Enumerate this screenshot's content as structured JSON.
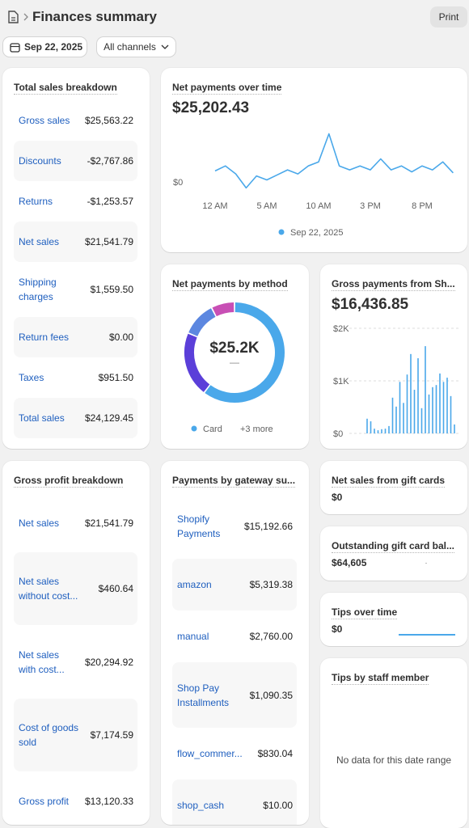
{
  "header": {
    "title": "Finances summary",
    "print_button": "Print"
  },
  "filters": {
    "date": "Sep 22, 2025",
    "channel": "All channels"
  },
  "total_sales_breakdown": {
    "title": "Total sales breakdown",
    "rows": [
      {
        "label": "Gross sales",
        "value": "$25,563.22"
      },
      {
        "label": "Discounts",
        "value": "-$2,767.86"
      },
      {
        "label": "Returns",
        "value": "-$1,253.57"
      },
      {
        "label": "Net sales",
        "value": "$21,541.79"
      },
      {
        "label": "Shipping\ncharges",
        "value": "$1,559.50"
      },
      {
        "label": "Return fees",
        "value": "$0.00"
      },
      {
        "label": "Taxes",
        "value": "$951.50"
      },
      {
        "label": "Total sales",
        "value": "$24,129.45"
      }
    ]
  },
  "net_payments_over_time": {
    "title": "Net payments over time",
    "total": "$25,202.43",
    "chart": {
      "type": "line",
      "x": [
        0,
        1,
        2,
        3,
        4,
        5,
        6,
        7,
        8,
        9,
        10,
        11,
        12,
        13,
        14,
        15,
        16,
        17,
        18,
        19,
        20,
        21,
        22,
        23
      ],
      "series": [
        {
          "name": "Sep 22, 2025",
          "color": "#4aa8ea",
          "values": [
            1100,
            1600,
            800,
            -600,
            600,
            200,
            700,
            1200,
            800,
            1600,
            2000,
            4800,
            1600,
            1200,
            1600,
            1200,
            2300,
            1200,
            1600,
            1000,
            1600,
            1200,
            2000,
            900
          ]
        }
      ],
      "xlim": [
        0,
        24
      ],
      "xticks": [
        {
          "value": 0,
          "label": "12 AM"
        },
        {
          "value": 5,
          "label": "5 AM"
        },
        {
          "value": 10,
          "label": "10 AM"
        },
        {
          "value": 15,
          "label": "3 PM"
        },
        {
          "value": 20,
          "label": "8 PM"
        }
      ],
      "ylim": [
        -1500,
        5500
      ],
      "yticks": [
        {
          "value": 0,
          "label": "$0"
        }
      ]
    }
  },
  "net_payments_by_method": {
    "title": "Net payments by method",
    "center_value": "$25.2K",
    "center_subtext": "—",
    "more": "+3 more",
    "chart": {
      "type": "donut",
      "categories": [
        "Card",
        null,
        null,
        null
      ],
      "values": [
        15200,
        5300,
        2800,
        1900
      ],
      "colors": [
        "#4aa8ea",
        "#5b3fd9",
        "#5c87e0",
        "#c84fb5"
      ]
    }
  },
  "gross_payments": {
    "title": "Gross payments from Sh...",
    "total": "$16,436.85",
    "chart": {
      "type": "bar",
      "categories": [
        null,
        null,
        null,
        null,
        null,
        null,
        null,
        null,
        null,
        null,
        null,
        null,
        null,
        null,
        null,
        null,
        null,
        null,
        null,
        null,
        null,
        null,
        null,
        null,
        null
      ],
      "values": [
        280,
        230,
        90,
        60,
        80,
        90,
        140,
        680,
        510,
        980,
        580,
        1120,
        1510,
        830,
        1430,
        480,
        1660,
        740,
        880,
        920,
        1140,
        980,
        1060,
        710,
        170
      ],
      "color": "#4aa8ea",
      "ylim": [
        0,
        2000
      ],
      "yticks": [
        {
          "value": 0,
          "label": "$0"
        },
        {
          "value": 1000,
          "label": "$1K"
        },
        {
          "value": 2000,
          "label": "$2K"
        }
      ],
      "grid": true
    }
  },
  "gross_profit_breakdown": {
    "title": "Gross profit breakdown",
    "rows": [
      {
        "label": "Net sales",
        "value": "$21,541.79"
      },
      {
        "label": "Net sales\nwithout cost...",
        "value": "$460.64"
      },
      {
        "label": "Net sales\nwith cost...",
        "value": "$20,294.92"
      },
      {
        "label": "Cost of goods\nsold",
        "value": "$7,174.59"
      },
      {
        "label": "Gross profit",
        "value": "$13,120.33"
      }
    ]
  },
  "payments_by_gateway": {
    "title": "Payments by gateway su...",
    "rows": [
      {
        "label": "Shopify\nPayments",
        "value": "$15,192.66"
      },
      {
        "label": "amazon",
        "value": "$5,319.38"
      },
      {
        "label": "manual",
        "value": "$2,760.00"
      },
      {
        "label": "Shop Pay\nInstallments",
        "value": "$1,090.35"
      },
      {
        "label": "flow_commer...",
        "value": "$830.04"
      },
      {
        "label": "shop_cash",
        "value": "$10.00"
      }
    ]
  },
  "gift_card_sales": {
    "title": "Net sales from gift cards",
    "value": "$0"
  },
  "outstanding_gift_card": {
    "title": "Outstanding gift card bal...",
    "value": "$64,605"
  },
  "tips_over_time": {
    "title": "Tips over time",
    "value": "$0"
  },
  "tips_by_staff": {
    "title": "Tips by staff member",
    "empty": "No data for this date range"
  }
}
